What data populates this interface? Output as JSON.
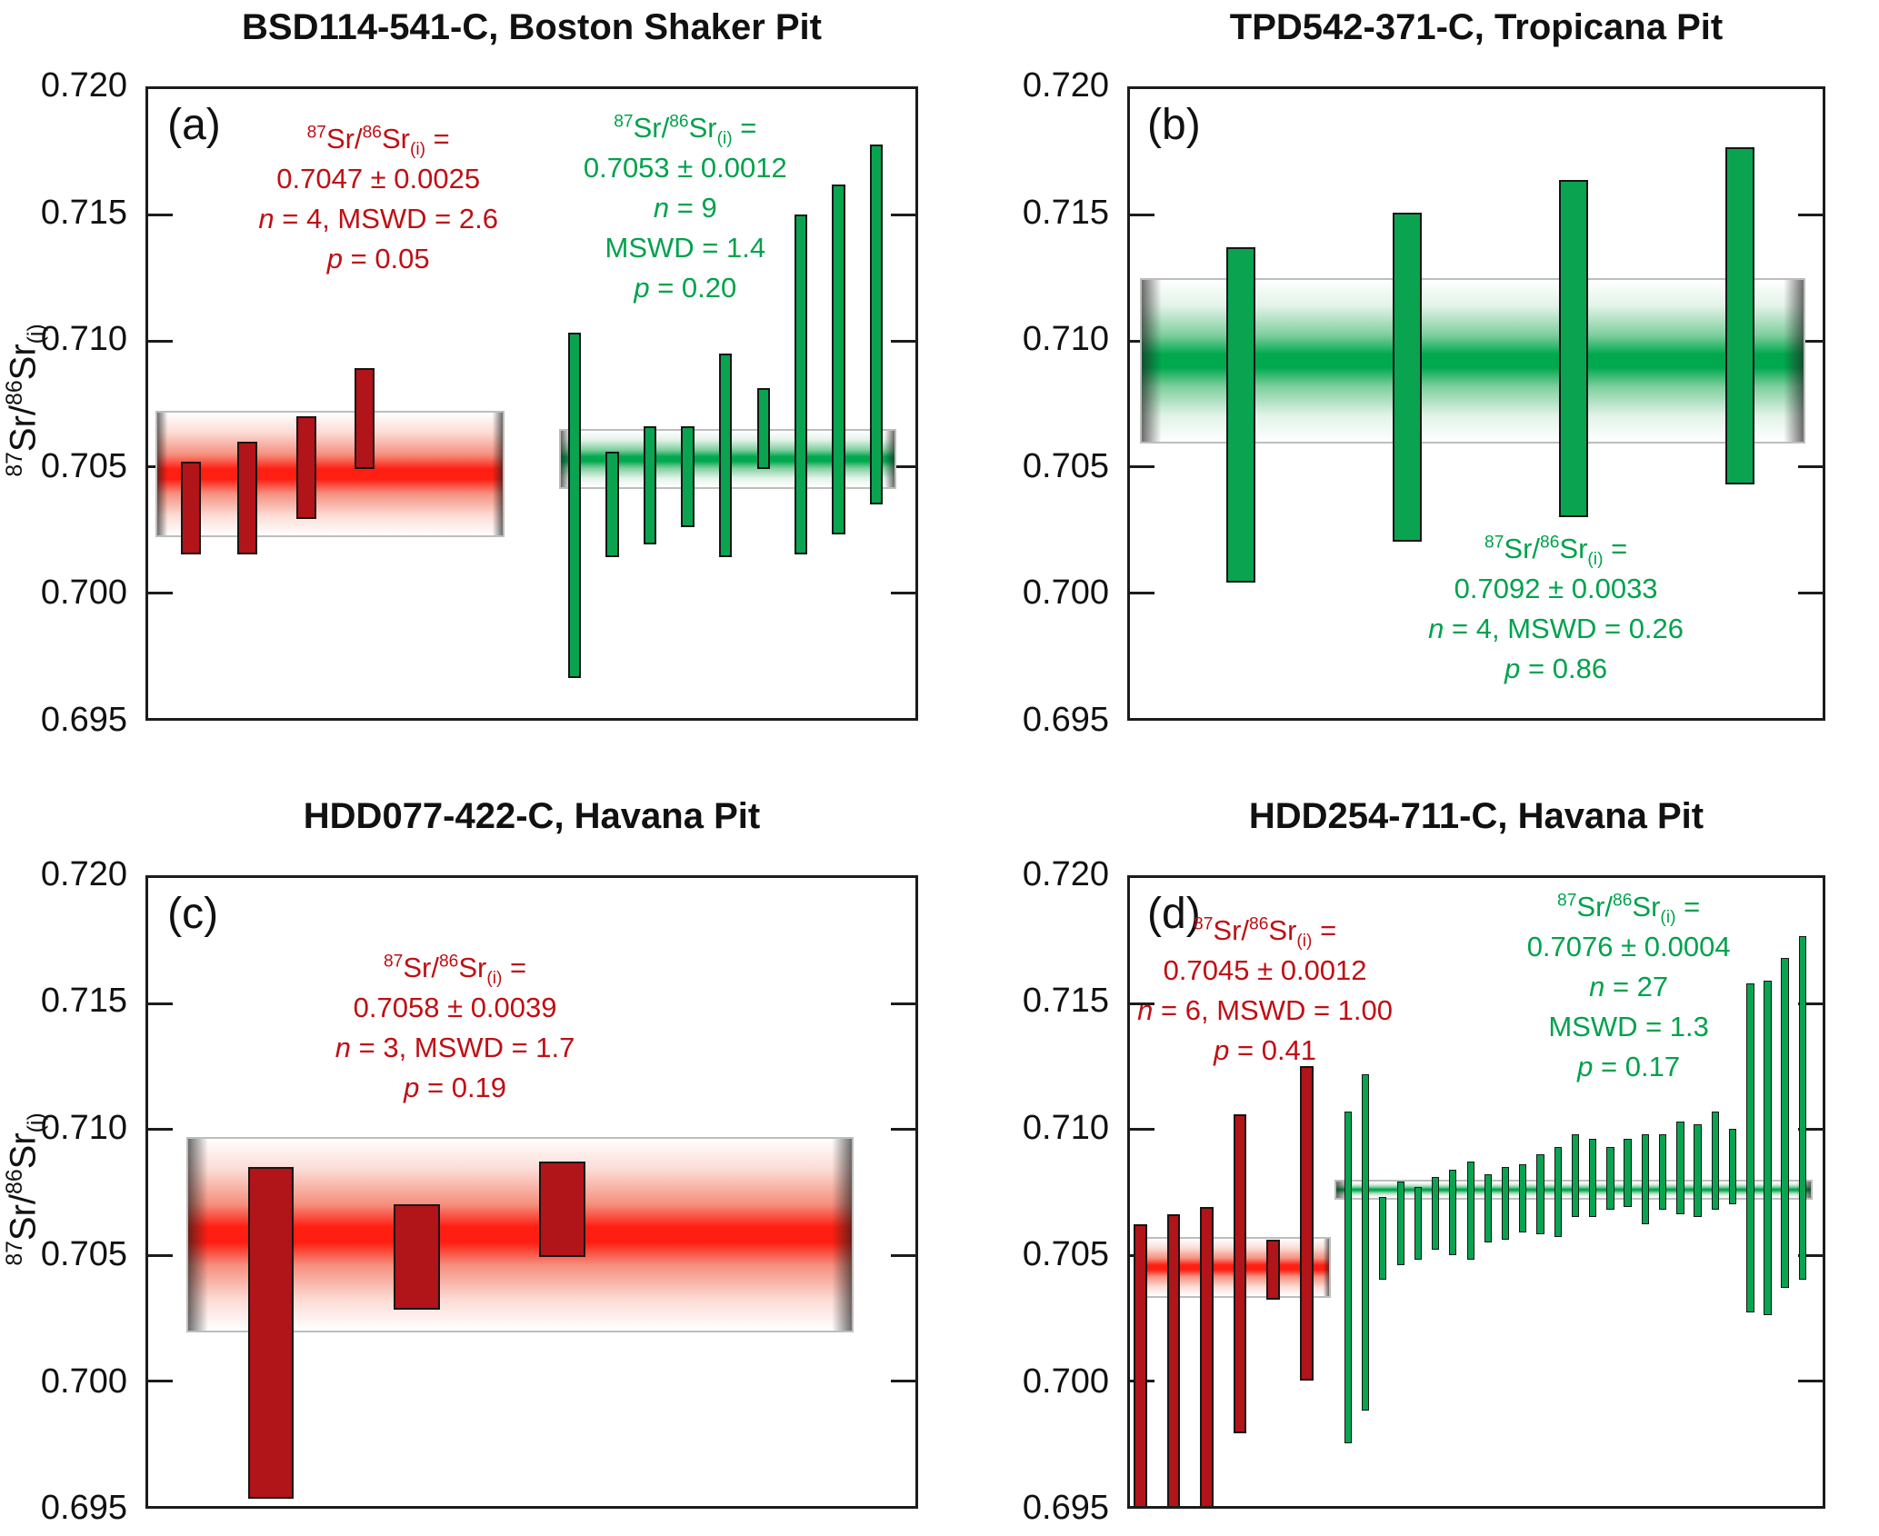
{
  "figure_background": "#ffffff",
  "colors": {
    "red_bar_fill": "#b11419",
    "red_text": "#c00f14",
    "red_band_core": "#ff1e12",
    "red_band_mid": "#f5907f",
    "red_band_pale": "#fcdcd5",
    "green_bar_fill": "#0aa350",
    "green_text": "#00a24c",
    "green_band_core": "#00a84e",
    "green_band_mid": "#7fcf9e",
    "green_band_pale": "#e2f3e8",
    "axis_color": "#1c1c1c",
    "band_border": "#bdbdbd"
  },
  "isotope_header": {
    "sup_a": "87",
    "mid_a": "Sr/",
    "sup_b": "86",
    "mid_b": "Sr",
    "sub": "(i)",
    "tail": " ="
  },
  "axis": {
    "min": 0.695,
    "max": 0.72,
    "tick_labels": [
      "0.720",
      "0.715",
      "0.710",
      "0.705",
      "0.700",
      "0.695"
    ],
    "tick_values": [
      0.72,
      0.715,
      0.71,
      0.705,
      0.7,
      0.695
    ],
    "ylabel": "87Sr/86Sr(i)"
  },
  "chart_data": [
    {
      "type": "bar",
      "letter": "(a)",
      "title": "BSD114-541-C, Boston Shaker Pit",
      "ylabel": "87Sr/86Sr(i)",
      "ylim": [
        0.695,
        0.72
      ],
      "show_ylabel": true,
      "groups": [
        {
          "color": "red",
          "mean": 0.7047,
          "err": 0.0025,
          "n": 4,
          "mswd": "2.6",
          "p": "0.05",
          "stats_lines": [
            "0.7047 ± 0.0025",
            "n = 4, MSWD = 2.6",
            "p = 0.05"
          ],
          "stats_pos": {
            "x": 0.3,
            "y": 0.048
          },
          "band_x": [
            0.01,
            0.465
          ],
          "bar_w": 0.026,
          "bars": [
            {
              "x": 0.056,
              "lo": 0.7015,
              "hi": 0.7052
            },
            {
              "x": 0.129,
              "lo": 0.7015,
              "hi": 0.706
            },
            {
              "x": 0.206,
              "lo": 0.7029,
              "hi": 0.707
            },
            {
              "x": 0.282,
              "lo": 0.7049,
              "hi": 0.7089
            }
          ]
        },
        {
          "color": "green",
          "mean": 0.7053,
          "err": 0.0012,
          "n": 9,
          "mswd": "1.4",
          "p": "0.20",
          "stats_lines": [
            "0.7053 ± 0.0012",
            "n = 9",
            "MSWD = 1.4",
            "p = 0.20"
          ],
          "stats_pos": {
            "x": 0.7,
            "y": 0.03
          },
          "band_x": [
            0.535,
            0.975
          ],
          "bar_w": 0.017,
          "bars": [
            {
              "x": 0.556,
              "lo": 0.6966,
              "hi": 0.7103
            },
            {
              "x": 0.605,
              "lo": 0.7014,
              "hi": 0.7056
            },
            {
              "x": 0.654,
              "lo": 0.7019,
              "hi": 0.7066
            },
            {
              "x": 0.703,
              "lo": 0.7026,
              "hi": 0.7066
            },
            {
              "x": 0.752,
              "lo": 0.7014,
              "hi": 0.7095
            },
            {
              "x": 0.802,
              "lo": 0.7049,
              "hi": 0.7081
            },
            {
              "x": 0.851,
              "lo": 0.7015,
              "hi": 0.715
            },
            {
              "x": 0.9,
              "lo": 0.7023,
              "hi": 0.7162
            },
            {
              "x": 0.949,
              "lo": 0.7035,
              "hi": 0.7178
            }
          ]
        }
      ]
    },
    {
      "type": "bar",
      "letter": "(b)",
      "title": "TPD542-371-C, Tropicana Pit",
      "ylabel": "87Sr/86Sr(i)",
      "ylim": [
        0.695,
        0.72
      ],
      "show_ylabel": false,
      "groups": [
        {
          "color": "green",
          "mean": 0.7092,
          "err": 0.0033,
          "n": 4,
          "mswd": "0.26",
          "p": "0.86",
          "stats_lines": [
            "0.7092 ± 0.0033",
            "n = 4, MSWD = 0.26",
            "p = 0.86"
          ],
          "stats_pos": {
            "x": 0.615,
            "y": 0.7
          },
          "band_x": [
            0.015,
            0.975
          ],
          "bar_w": 0.042,
          "bars": [
            {
              "x": 0.16,
              "lo": 0.7004,
              "hi": 0.7137
            },
            {
              "x": 0.4,
              "lo": 0.702,
              "hi": 0.7151
            },
            {
              "x": 0.64,
              "lo": 0.703,
              "hi": 0.7164
            },
            {
              "x": 0.88,
              "lo": 0.7043,
              "hi": 0.7177
            }
          ]
        }
      ]
    },
    {
      "type": "bar",
      "letter": "(c)",
      "title": "HDD077-422-C, Havana Pit",
      "ylabel": "87Sr/86Sr(i)",
      "ylim": [
        0.695,
        0.72
      ],
      "show_ylabel": true,
      "groups": [
        {
          "color": "red",
          "mean": 0.7058,
          "err": 0.0039,
          "n": 3,
          "mswd": "1.7",
          "p": "0.19",
          "stats_lines": [
            "0.7058 ± 0.0039",
            "n = 3, MSWD = 1.7",
            "p = 0.19"
          ],
          "stats_pos": {
            "x": 0.4,
            "y": 0.112
          },
          "band_x": [
            0.05,
            0.92
          ],
          "bar_w": 0.06,
          "bars": [
            {
              "x": 0.16,
              "lo": 0.6953,
              "hi": 0.7085
            },
            {
              "x": 0.35,
              "lo": 0.7028,
              "hi": 0.707
            },
            {
              "x": 0.54,
              "lo": 0.7049,
              "hi": 0.7087
            }
          ]
        }
      ]
    },
    {
      "type": "bar",
      "letter": "(d)",
      "title": "HDD254-711-C, Havana Pit",
      "ylabel": "87Sr/86Sr(i)",
      "ylim": [
        0.695,
        0.72
      ],
      "show_ylabel": false,
      "groups": [
        {
          "color": "red",
          "mean": 0.7045,
          "err": 0.0012,
          "n": 6,
          "mswd": "1.00",
          "p": "0.41",
          "stats_lines": [
            "0.7045 ± 0.0012",
            "n = 6, MSWD = 1.00",
            "p = 0.41"
          ],
          "stats_pos": {
            "x": 0.195,
            "y": 0.052
          },
          "band_x": [
            0.005,
            0.29
          ],
          "bar_w": 0.019,
          "bars": [
            {
              "x": 0.015,
              "lo": 0.695,
              "hi": 0.7062,
              "cut": true
            },
            {
              "x": 0.063,
              "lo": 0.695,
              "hi": 0.7066,
              "cut": true
            },
            {
              "x": 0.111,
              "lo": 0.695,
              "hi": 0.7069,
              "cut": true
            },
            {
              "x": 0.159,
              "lo": 0.6979,
              "hi": 0.7106
            },
            {
              "x": 0.207,
              "lo": 0.7032,
              "hi": 0.7056
            },
            {
              "x": 0.255,
              "lo": 0.7,
              "hi": 0.7125
            }
          ]
        },
        {
          "color": "green",
          "mean": 0.7076,
          "err": 0.0004,
          "n": 27,
          "mswd": "1.3",
          "p": "0.17",
          "stats_lines": [
            "0.7076 ± 0.0004",
            "n = 27",
            "MSWD = 1.3",
            "p = 0.17"
          ],
          "stats_pos": {
            "x": 0.72,
            "y": 0.014
          },
          "band_x": [
            0.295,
            0.985
          ],
          "bar_w": 0.0115,
          "bars": [
            {
              "x": 0.315,
              "lo": 0.6975,
              "hi": 0.7107
            },
            {
              "x": 0.34,
              "lo": 0.6988,
              "hi": 0.7122
            },
            {
              "x": 0.365,
              "lo": 0.704,
              "hi": 0.7073
            },
            {
              "x": 0.391,
              "lo": 0.7046,
              "hi": 0.7079
            },
            {
              "x": 0.416,
              "lo": 0.7048,
              "hi": 0.7077
            },
            {
              "x": 0.441,
              "lo": 0.7052,
              "hi": 0.7081
            },
            {
              "x": 0.466,
              "lo": 0.705,
              "hi": 0.7084
            },
            {
              "x": 0.492,
              "lo": 0.7048,
              "hi": 0.7087
            },
            {
              "x": 0.517,
              "lo": 0.7055,
              "hi": 0.7082
            },
            {
              "x": 0.542,
              "lo": 0.7056,
              "hi": 0.7085
            },
            {
              "x": 0.567,
              "lo": 0.7059,
              "hi": 0.7086
            },
            {
              "x": 0.593,
              "lo": 0.7058,
              "hi": 0.709
            },
            {
              "x": 0.618,
              "lo": 0.7057,
              "hi": 0.7093
            },
            {
              "x": 0.643,
              "lo": 0.7065,
              "hi": 0.7098
            },
            {
              "x": 0.668,
              "lo": 0.7065,
              "hi": 0.7096
            },
            {
              "x": 0.694,
              "lo": 0.7068,
              "hi": 0.7093
            },
            {
              "x": 0.719,
              "lo": 0.7069,
              "hi": 0.7096
            },
            {
              "x": 0.744,
              "lo": 0.7062,
              "hi": 0.7098
            },
            {
              "x": 0.769,
              "lo": 0.7068,
              "hi": 0.7098
            },
            {
              "x": 0.795,
              "lo": 0.7066,
              "hi": 0.7103
            },
            {
              "x": 0.82,
              "lo": 0.7065,
              "hi": 0.7102
            },
            {
              "x": 0.845,
              "lo": 0.7068,
              "hi": 0.7107
            },
            {
              "x": 0.87,
              "lo": 0.707,
              "hi": 0.71
            },
            {
              "x": 0.896,
              "lo": 0.7027,
              "hi": 0.7158
            },
            {
              "x": 0.921,
              "lo": 0.7026,
              "hi": 0.7159
            },
            {
              "x": 0.946,
              "lo": 0.7037,
              "hi": 0.7168
            },
            {
              "x": 0.971,
              "lo": 0.704,
              "hi": 0.7177
            }
          ]
        }
      ]
    }
  ]
}
